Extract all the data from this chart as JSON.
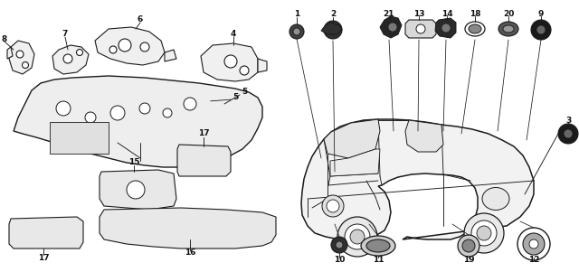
{
  "bg_color": "#ffffff",
  "fig_width": 6.4,
  "fig_height": 3.01,
  "dpi": 100,
  "ec": "#1a1a1a",
  "lw": 0.8,
  "text_color": "#111111",
  "label_fontsize": 6.5
}
